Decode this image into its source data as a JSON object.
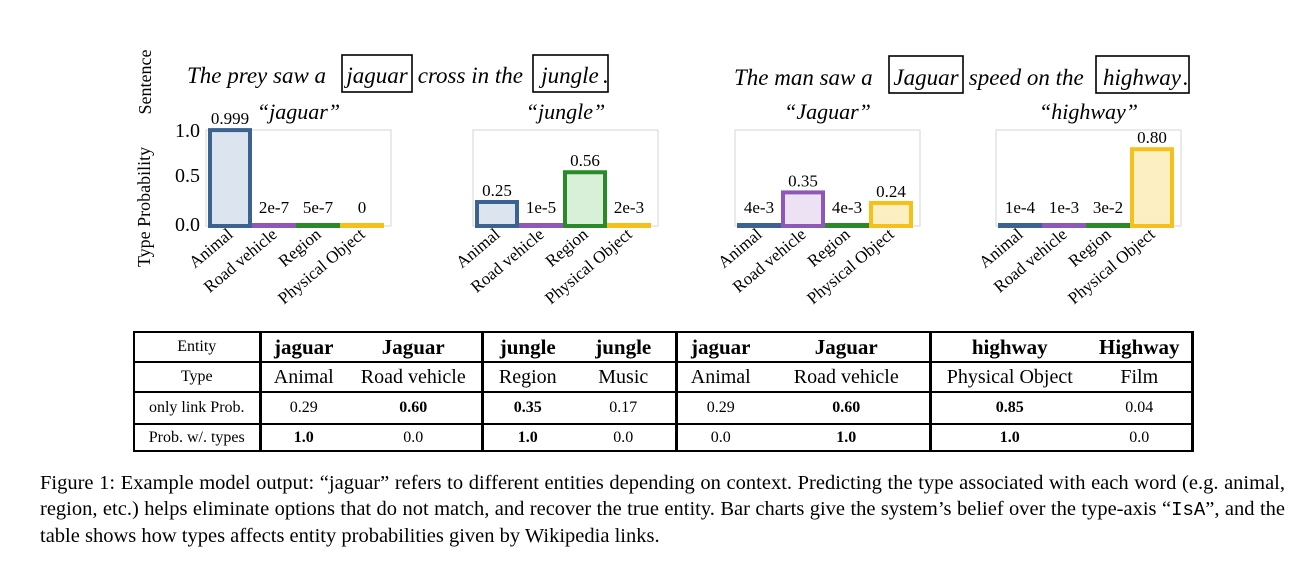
{
  "figure": {
    "axis_labels": {
      "sentence": "Sentence",
      "type_probability": "Type Probability"
    },
    "sentences": [
      {
        "parts": [
          "The prey saw a ",
          "jaguar",
          " cross in the ",
          "jungle",
          "."
        ]
      },
      {
        "parts": [
          "The man saw a ",
          "Jaguar",
          " speed on the ",
          "highway",
          "."
        ]
      }
    ],
    "colors": {
      "Animal": "#3b6391",
      "Road vehicle": "#8f58b8",
      "Region": "#2a8a2a",
      "Physical Object": "#f5c019"
    },
    "fills": {
      "Animal": "#dbe4ef",
      "Road vehicle": "#ece2f3",
      "Region": "#d8efd8",
      "Physical Object": "#fcefc1"
    }
  },
  "chart_data": [
    {
      "type": "bar",
      "title": "“jaguar”",
      "categories": [
        "Animal",
        "Road vehicle",
        "Region",
        "Physical Object"
      ],
      "values": [
        0.999,
        2e-07,
        5e-07,
        0
      ],
      "labels": [
        "0.999",
        "2e-7",
        "5e-7",
        "0"
      ],
      "ylim": [
        0,
        1
      ],
      "yticks": [
        "0.0",
        "0.5",
        "1.0"
      ],
      "ylabel": "Type Probability"
    },
    {
      "type": "bar",
      "title": "“jungle”",
      "categories": [
        "Animal",
        "Road vehicle",
        "Region",
        "Physical Object"
      ],
      "values": [
        0.25,
        1e-05,
        0.56,
        0.002
      ],
      "labels": [
        "0.25",
        "1e-5",
        "0.56",
        "2e-3"
      ],
      "ylim": [
        0,
        1
      ]
    },
    {
      "type": "bar",
      "title": "“Jaguar”",
      "categories": [
        "Animal",
        "Road vehicle",
        "Region",
        "Physical Object"
      ],
      "values": [
        0.004,
        0.35,
        0.004,
        0.24
      ],
      "labels": [
        "4e-3",
        "0.35",
        "4e-3",
        "0.24"
      ],
      "ylim": [
        0,
        1
      ]
    },
    {
      "type": "bar",
      "title": "“highway”",
      "categories": [
        "Animal",
        "Road vehicle",
        "Region",
        "Physical Object"
      ],
      "values": [
        0.0001,
        0.001,
        0.03,
        0.8
      ],
      "labels": [
        "1e-4",
        "1e-3",
        "3e-2",
        "0.80"
      ],
      "ylim": [
        0,
        1
      ]
    }
  ],
  "table": {
    "rows": [
      {
        "label": "Entity",
        "cells": [
          "jaguar",
          "Jaguar",
          "jungle",
          "jungle",
          "jaguar",
          "Jaguar",
          "highway",
          "Highway"
        ]
      },
      {
        "label": "Type",
        "cells": [
          "Animal",
          "Road vehicle",
          "Region",
          "Music",
          "Animal",
          "Road vehicle",
          "Physical Object",
          "Film"
        ]
      },
      {
        "label": "only link Prob.",
        "cells": [
          "0.29",
          "0.60",
          "0.35",
          "0.17",
          "0.29",
          "0.60",
          "0.85",
          "0.04"
        ]
      },
      {
        "label": "Prob. w/. types",
        "cells": [
          "1.0",
          "0.0",
          "1.0",
          "0.0",
          "0.0",
          "1.0",
          "1.0",
          "0.0"
        ]
      }
    ]
  },
  "caption": {
    "before": "Figure 1: Example model output: “jaguar” refers to different entities depending on context. Predicting the type associated with each word (e.g. animal, region, etc.) helps eliminate options that do not match, and recover the true entity. Bar charts give the system’s belief over the type-axis “",
    "code": "IsA",
    "after": "”, and the table shows how types affects entity probabilities given by Wikipedia links."
  }
}
